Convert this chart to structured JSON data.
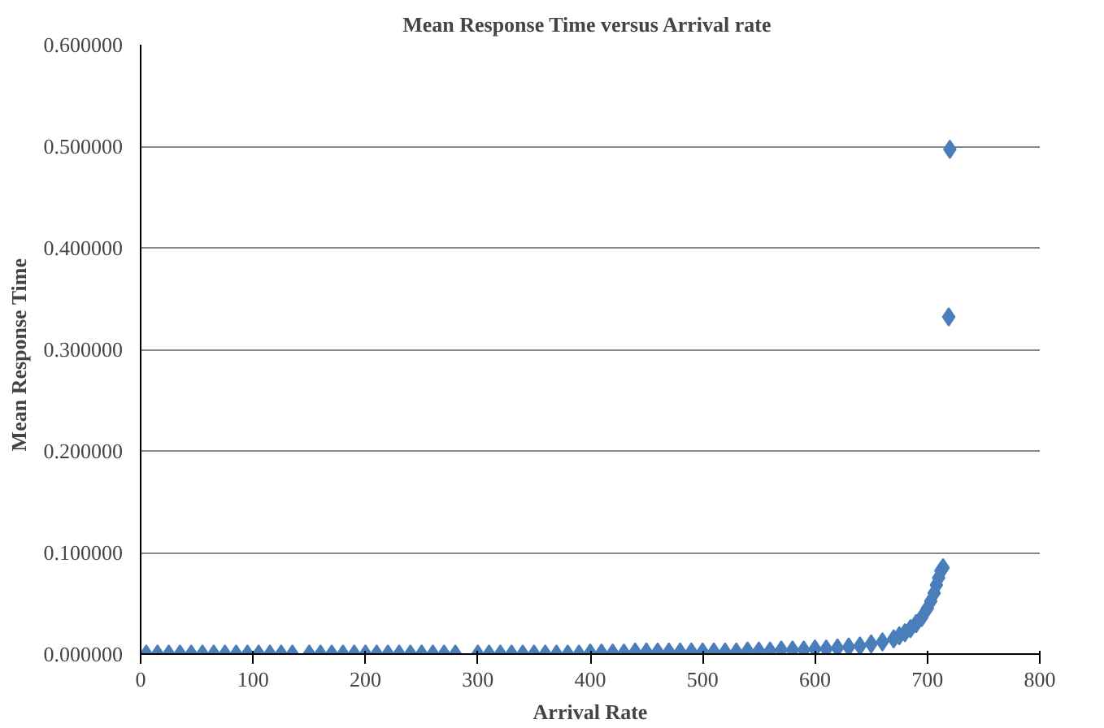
{
  "chart_data": {
    "type": "scatter",
    "title": "Mean Response  Time versus Arrival rate",
    "xlabel": "Arrival Rate",
    "ylabel": "Mean  Response  Time",
    "xlim": [
      0,
      800
    ],
    "ylim": [
      0,
      0.6
    ],
    "xticks": [
      0,
      100,
      200,
      300,
      400,
      500,
      600,
      700,
      800
    ],
    "yticks": [
      {
        "value": 0,
        "label": "0.000000"
      },
      {
        "value": 0.1,
        "label": "0.100000"
      },
      {
        "value": 0.2,
        "label": "0.200000"
      },
      {
        "value": 0.3,
        "label": "0.300000"
      },
      {
        "value": 0.4,
        "label": "0.400000"
      },
      {
        "value": 0.5,
        "label": "0.500000"
      },
      {
        "value": 0.6,
        "label": "0.600000"
      }
    ],
    "grid": "y",
    "marker": "diamond",
    "series": [
      {
        "color": "#4a7ebb",
        "x": [
          5,
          15,
          25,
          35,
          45,
          55,
          65,
          75,
          85,
          95,
          105,
          115,
          125,
          135,
          150,
          160,
          170,
          180,
          190,
          200,
          210,
          220,
          230,
          240,
          250,
          260,
          270,
          280,
          300,
          310,
          320,
          330,
          340,
          350,
          360,
          370,
          380,
          390,
          400,
          410,
          420,
          430,
          440,
          450,
          460,
          470,
          480,
          490,
          500,
          510,
          520,
          530,
          540,
          550,
          560,
          570,
          580,
          590,
          600,
          610,
          620,
          630,
          640,
          650,
          660,
          670,
          675,
          680,
          685,
          690,
          695,
          700,
          703,
          706,
          708,
          710,
          712,
          714,
          719,
          720
        ],
        "values": [
          0,
          0,
          0,
          0,
          0,
          0,
          0,
          0,
          0,
          0,
          0,
          0,
          0,
          0,
          0,
          0,
          0,
          0,
          0,
          0,
          0,
          0,
          0,
          0,
          0,
          0,
          0,
          0,
          0,
          0,
          0,
          0,
          0,
          0,
          0,
          0,
          0,
          0,
          0.001,
          0.001,
          0.001,
          0.001,
          0.002,
          0.002,
          0.002,
          0.002,
          0.002,
          0.002,
          0.002,
          0.002,
          0.002,
          0.002,
          0.003,
          0.003,
          0.003,
          0.004,
          0.004,
          0.004,
          0.005,
          0.005,
          0.006,
          0.007,
          0.008,
          0.01,
          0.012,
          0.015,
          0.018,
          0.021,
          0.025,
          0.03,
          0.036,
          0.045,
          0.052,
          0.06,
          0.068,
          0.075,
          0.082,
          0.085,
          0.332,
          0.497
        ]
      }
    ]
  }
}
